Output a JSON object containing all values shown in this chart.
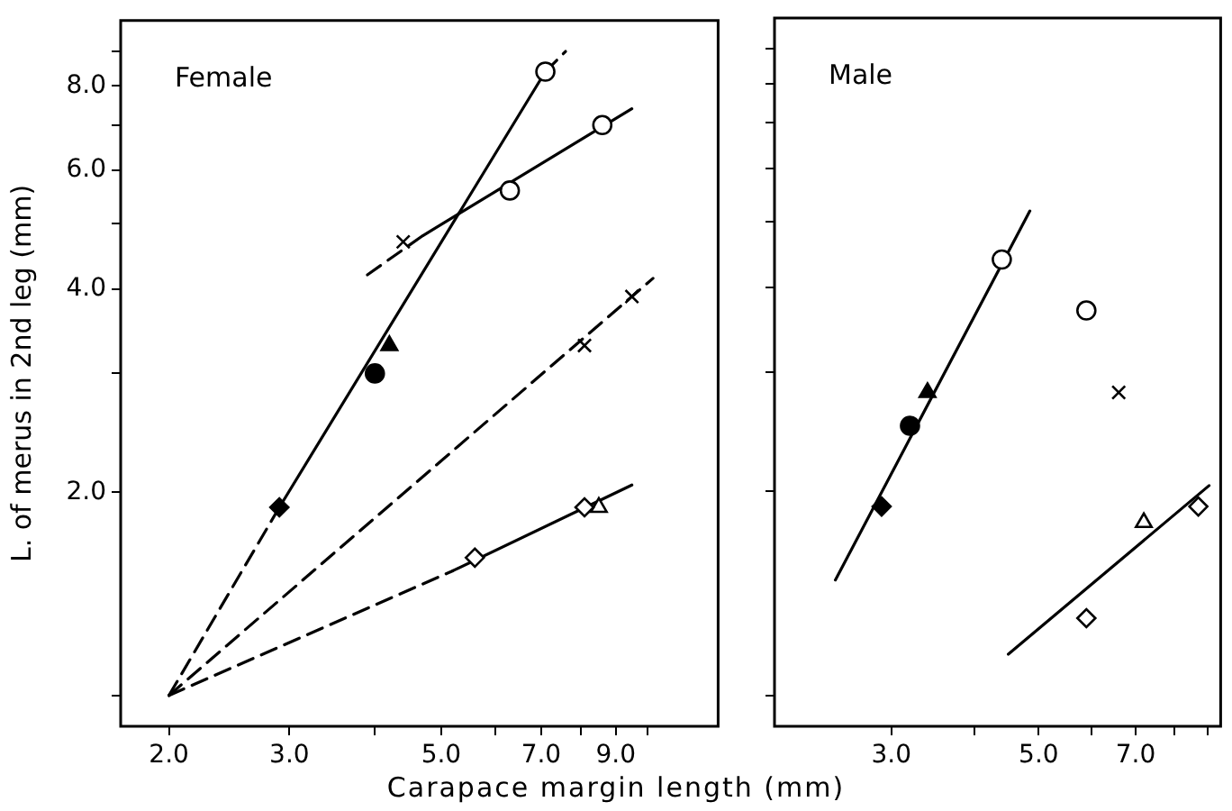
{
  "chart_data": [
    {
      "type": "scatter",
      "title": "Female",
      "ylabel": "L. of merus in 2nd leg (mm)",
      "xlabel": "Carapace margin length (mm)",
      "log": "xy",
      "grid": false,
      "legend": false,
      "xlim": [
        1.7,
        12.7
      ],
      "ylim": [
        0.9,
        10
      ],
      "xticks": [
        {
          "value": 2,
          "label": "2.0"
        },
        {
          "value": 3,
          "label": "3.0"
        },
        {
          "value": 4,
          "label": null
        },
        {
          "value": 5,
          "label": "5.0"
        },
        {
          "value": 6,
          "label": null
        },
        {
          "value": 7,
          "label": "7.0"
        },
        {
          "value": 8,
          "label": null
        },
        {
          "value": 9,
          "label": "9.0"
        },
        {
          "value": 10,
          "label": null
        }
      ],
      "yticks": [
        {
          "value": 1,
          "label": null
        },
        {
          "value": 2,
          "label": "2.0"
        },
        {
          "value": 3,
          "label": null
        },
        {
          "value": 4,
          "label": "4.0"
        },
        {
          "value": 5,
          "label": null
        },
        {
          "value": 6,
          "label": "6.0"
        },
        {
          "value": 7,
          "label": null
        },
        {
          "value": 8,
          "label": "8.0"
        },
        {
          "value": 9,
          "label": null
        }
      ],
      "series": [
        {
          "marker": "circle",
          "color": "#ffffff",
          "x": [
            7.1
          ],
          "values": [
            8.4
          ]
        },
        {
          "marker": "circle",
          "color": "#ffffff",
          "x": [
            6.3,
            8.6
          ],
          "values": [
            5.6,
            7.0
          ]
        },
        {
          "marker": "cross",
          "color": "#000000",
          "x": [
            4.4
          ],
          "values": [
            4.7
          ]
        },
        {
          "marker": "triangle",
          "color": "#000000",
          "x": [
            4.2
          ],
          "values": [
            3.3
          ]
        },
        {
          "marker": "circle",
          "color": "#000000",
          "x": [
            4.0
          ],
          "values": [
            3.0
          ]
        },
        {
          "marker": "diamond",
          "color": "#000000",
          "x": [
            2.9
          ],
          "values": [
            1.9
          ]
        },
        {
          "marker": "cross",
          "color": "#000000",
          "x": [
            8.1,
            9.5
          ],
          "values": [
            3.3,
            3.9
          ]
        },
        {
          "marker": "diamond",
          "color": "#ffffff",
          "x": [
            5.6,
            8.1
          ],
          "values": [
            1.6,
            1.9
          ]
        },
        {
          "marker": "triangle",
          "color": "#ffffff",
          "x": [
            8.5
          ],
          "values": [
            1.9
          ]
        },
        {
          "type": "line",
          "line_style": "dashed",
          "color": "#000000",
          "x": [
            2.0,
            2.9
          ],
          "values": [
            1.0,
            1.9
          ]
        },
        {
          "type": "line",
          "line_style": "solid",
          "color": "#000000",
          "x": [
            2.9,
            7.1
          ],
          "values": [
            1.9,
            8.4
          ]
        },
        {
          "type": "line",
          "line_style": "dashed",
          "color": "#000000",
          "x": [
            7.1,
            7.6
          ],
          "values": [
            8.4,
            9.0
          ]
        },
        {
          "type": "line",
          "line_style": "dashed",
          "color": "#000000",
          "x": [
            3.9,
            4.7
          ],
          "values": [
            4.2,
            4.8
          ]
        },
        {
          "type": "line",
          "line_style": "solid",
          "color": "#000000",
          "x": [
            4.7,
            9.5
          ],
          "values": [
            4.8,
            7.4
          ]
        },
        {
          "type": "line",
          "line_style": "dashed",
          "color": "#000000",
          "x": [
            2.0,
            10.2
          ],
          "values": [
            1.0,
            4.15
          ]
        },
        {
          "type": "line",
          "line_style": "dashed",
          "color": "#000000",
          "x": [
            2.0,
            5.2
          ],
          "values": [
            1.0,
            1.53
          ]
        },
        {
          "type": "line",
          "line_style": "solid",
          "color": "#000000",
          "x": [
            5.2,
            9.5
          ],
          "values": [
            1.53,
            2.05
          ]
        }
      ]
    },
    {
      "type": "scatter",
      "title": "Male",
      "log": "xy",
      "grid": false,
      "legend": false,
      "tick_labels": "x",
      "xlim": [
        2.0,
        9.4
      ],
      "ylim": [
        0.9,
        10
      ],
      "xticks": [
        {
          "value": 3,
          "label": "3.0"
        },
        {
          "value": 4,
          "label": null
        },
        {
          "value": 5,
          "label": "5.0"
        },
        {
          "value": 6,
          "label": null
        },
        {
          "value": 7,
          "label": "7.0"
        },
        {
          "value": 8,
          "label": null
        },
        {
          "value": 9,
          "label": null
        }
      ],
      "yticks": [
        {
          "value": 1,
          "label": null
        },
        {
          "value": 2,
          "label": null
        },
        {
          "value": 3,
          "label": null
        },
        {
          "value": 4,
          "label": null
        },
        {
          "value": 5,
          "label": null
        },
        {
          "value": 6,
          "label": null
        },
        {
          "value": 7,
          "label": null
        },
        {
          "value": 8,
          "label": null
        },
        {
          "value": 9,
          "label": null
        }
      ],
      "series": [
        {
          "marker": "circle",
          "color": "#ffffff",
          "x": [
            4.4
          ],
          "values": [
            4.4
          ]
        },
        {
          "marker": "triangle",
          "color": "#000000",
          "x": [
            3.4
          ],
          "values": [
            2.8
          ]
        },
        {
          "marker": "circle",
          "color": "#000000",
          "x": [
            3.2
          ],
          "values": [
            2.5
          ]
        },
        {
          "marker": "diamond",
          "color": "#000000",
          "x": [
            2.9
          ],
          "values": [
            1.9
          ]
        },
        {
          "marker": "circle",
          "color": "#ffffff",
          "x": [
            5.9
          ],
          "values": [
            3.7
          ]
        },
        {
          "marker": "cross",
          "color": "#000000",
          "x": [
            6.6
          ],
          "values": [
            2.8
          ]
        },
        {
          "marker": "triangle",
          "color": "#ffffff",
          "x": [
            7.2
          ],
          "values": [
            1.8
          ]
        },
        {
          "marker": "diamond",
          "color": "#ffffff",
          "x": [
            5.9,
            8.7
          ],
          "values": [
            1.3,
            1.9
          ]
        },
        {
          "type": "line",
          "line_style": "solid",
          "color": "#000000",
          "x": [
            2.47,
            4.85
          ],
          "values": [
            1.48,
            5.19
          ]
        },
        {
          "type": "line",
          "line_style": "solid",
          "color": "#000000",
          "x": [
            4.5,
            9.03
          ],
          "values": [
            1.15,
            2.04
          ]
        }
      ]
    }
  ]
}
